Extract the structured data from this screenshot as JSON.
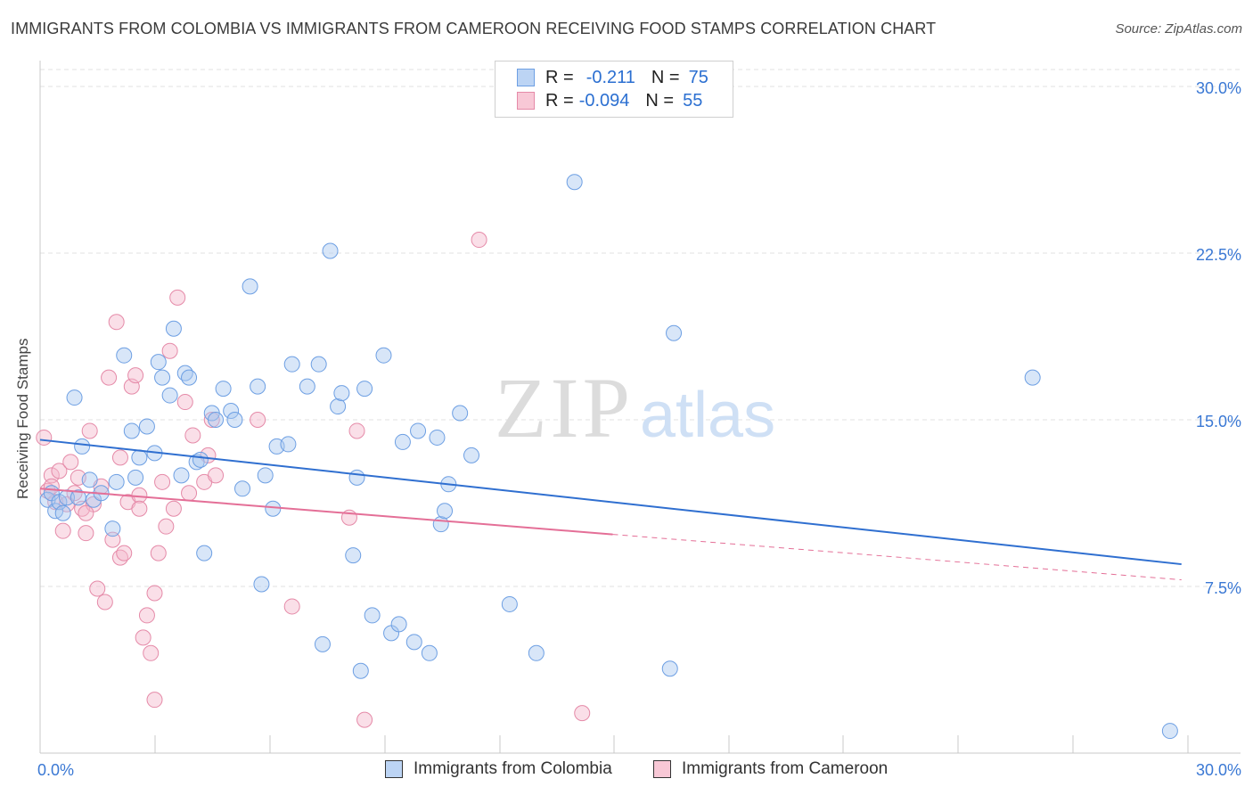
{
  "title": "IMMIGRANTS FROM COLOMBIA VS IMMIGRANTS FROM CAMEROON RECEIVING FOOD STAMPS CORRELATION CHART",
  "source": "Source: ZipAtlas.com",
  "watermark": {
    "zip": "ZIP",
    "atlas": "atlas"
  },
  "legend": {
    "r_label": "R =",
    "n_label": "N =",
    "series": [
      {
        "r": "-0.211",
        "n": "75"
      },
      {
        "r": "-0.094",
        "n": "55"
      }
    ]
  },
  "colors": {
    "blue_fill": "#a9c7f0",
    "blue_stroke": "#6d9fe3",
    "blue_line": "#2f6fd0",
    "pink_fill": "#f5b8cb",
    "pink_stroke": "#e58aa8",
    "pink_line": "#e46f97",
    "axis_label": "#3a78d4",
    "grid": "#e2e2e2"
  },
  "chart_data": {
    "type": "scatter",
    "title": "IMMIGRANTS FROM COLOMBIA VS IMMIGRANTS FROM CAMEROON RECEIVING FOOD STAMPS CORRELATION CHART",
    "xlabel": "",
    "ylabel": "Receiving Food Stamps",
    "xlim": [
      0,
      30
    ],
    "ylim": [
      0,
      30
    ],
    "x_tick_labels": {
      "left": "0.0%",
      "right": "30.0%"
    },
    "y_ticks": [
      {
        "value": 7.5,
        "label": "7.5%"
      },
      {
        "value": 15.0,
        "label": "15.0%"
      },
      {
        "value": 22.5,
        "label": "22.5%"
      },
      {
        "value": 30.0,
        "label": "30.0%"
      }
    ],
    "series": [
      {
        "name": "Immigrants from Colombia",
        "color": "blue",
        "r": -0.211,
        "n": 75,
        "trend": {
          "x0": 0.0,
          "y0": 14.1,
          "x1": 29.9,
          "y1": 8.5,
          "solid_until": 29.9
        },
        "points": [
          [
            0.2,
            11.4
          ],
          [
            0.3,
            11.7
          ],
          [
            0.4,
            10.9
          ],
          [
            0.5,
            11.3
          ],
          [
            0.6,
            10.8
          ],
          [
            0.7,
            11.5
          ],
          [
            0.9,
            16.0
          ],
          [
            1.0,
            11.5
          ],
          [
            1.1,
            13.8
          ],
          [
            1.3,
            12.3
          ],
          [
            1.4,
            11.4
          ],
          [
            1.6,
            11.7
          ],
          [
            1.9,
            10.1
          ],
          [
            2.0,
            12.2
          ],
          [
            2.2,
            17.9
          ],
          [
            2.4,
            14.5
          ],
          [
            2.5,
            12.4
          ],
          [
            2.6,
            13.3
          ],
          [
            2.8,
            14.7
          ],
          [
            3.0,
            13.5
          ],
          [
            3.1,
            17.6
          ],
          [
            3.2,
            16.9
          ],
          [
            3.4,
            16.1
          ],
          [
            3.5,
            19.1
          ],
          [
            3.7,
            12.5
          ],
          [
            3.8,
            17.1
          ],
          [
            3.9,
            16.9
          ],
          [
            4.1,
            13.1
          ],
          [
            4.2,
            13.2
          ],
          [
            4.3,
            9.0
          ],
          [
            4.5,
            15.3
          ],
          [
            4.6,
            15.0
          ],
          [
            4.8,
            16.4
          ],
          [
            5.0,
            15.4
          ],
          [
            5.1,
            15.0
          ],
          [
            5.3,
            11.9
          ],
          [
            5.5,
            21.0
          ],
          [
            5.7,
            16.5
          ],
          [
            5.8,
            7.6
          ],
          [
            5.9,
            12.5
          ],
          [
            6.1,
            11.0
          ],
          [
            6.2,
            13.8
          ],
          [
            6.5,
            13.9
          ],
          [
            6.6,
            17.5
          ],
          [
            7.0,
            16.5
          ],
          [
            7.3,
            17.5
          ],
          [
            7.4,
            4.9
          ],
          [
            7.6,
            22.6
          ],
          [
            7.8,
            15.6
          ],
          [
            7.9,
            16.2
          ],
          [
            8.2,
            8.9
          ],
          [
            8.3,
            12.4
          ],
          [
            8.4,
            3.7
          ],
          [
            8.5,
            16.4
          ],
          [
            8.7,
            6.2
          ],
          [
            9.0,
            17.9
          ],
          [
            9.2,
            5.4
          ],
          [
            9.4,
            5.8
          ],
          [
            9.5,
            14.0
          ],
          [
            9.8,
            5.0
          ],
          [
            9.9,
            14.5
          ],
          [
            10.2,
            4.5
          ],
          [
            10.4,
            14.2
          ],
          [
            10.5,
            10.3
          ],
          [
            10.6,
            10.9
          ],
          [
            10.7,
            12.1
          ],
          [
            11.0,
            15.3
          ],
          [
            11.3,
            13.4
          ],
          [
            12.3,
            6.7
          ],
          [
            13.0,
            4.5
          ],
          [
            14.0,
            25.7
          ],
          [
            16.5,
            3.8
          ],
          [
            16.6,
            18.9
          ],
          [
            26.0,
            16.9
          ],
          [
            29.6,
            1.0
          ]
        ]
      },
      {
        "name": "Immigrants from Cameroon",
        "color": "pink",
        "r": -0.094,
        "n": 55,
        "trend": {
          "x0": 0.0,
          "y0": 11.9,
          "x1": 29.9,
          "y1": 7.8,
          "solid_until": 15.0
        },
        "points": [
          [
            0.1,
            14.2
          ],
          [
            0.2,
            11.8
          ],
          [
            0.3,
            12.5
          ],
          [
            0.4,
            11.3
          ],
          [
            0.5,
            12.7
          ],
          [
            0.6,
            10.0
          ],
          [
            0.7,
            11.2
          ],
          [
            0.8,
            13.1
          ],
          [
            0.9,
            11.7
          ],
          [
            1.0,
            12.4
          ],
          [
            1.1,
            11.0
          ],
          [
            1.2,
            9.9
          ],
          [
            1.3,
            14.5
          ],
          [
            1.4,
            11.2
          ],
          [
            1.5,
            7.4
          ],
          [
            1.6,
            12.0
          ],
          [
            1.7,
            6.8
          ],
          [
            1.8,
            16.9
          ],
          [
            1.9,
            9.6
          ],
          [
            2.0,
            19.4
          ],
          [
            2.1,
            8.8
          ],
          [
            2.2,
            9.0
          ],
          [
            2.3,
            11.3
          ],
          [
            2.4,
            16.5
          ],
          [
            2.5,
            17.0
          ],
          [
            2.6,
            11.6
          ],
          [
            2.7,
            5.2
          ],
          [
            2.8,
            6.2
          ],
          [
            2.9,
            4.5
          ],
          [
            3.0,
            7.2
          ],
          [
            3.1,
            9.0
          ],
          [
            3.2,
            12.2
          ],
          [
            3.3,
            10.2
          ],
          [
            3.4,
            18.1
          ],
          [
            3.5,
            11.0
          ],
          [
            3.6,
            20.5
          ],
          [
            3.8,
            15.8
          ],
          [
            3.9,
            11.7
          ],
          [
            4.0,
            14.3
          ],
          [
            4.3,
            12.2
          ],
          [
            4.4,
            13.4
          ],
          [
            4.5,
            15.0
          ],
          [
            4.6,
            12.5
          ],
          [
            5.7,
            15.0
          ],
          [
            6.6,
            6.6
          ],
          [
            8.1,
            10.6
          ],
          [
            8.3,
            14.5
          ],
          [
            8.5,
            1.5
          ],
          [
            11.5,
            23.1
          ],
          [
            14.2,
            1.8
          ],
          [
            2.1,
            13.3
          ],
          [
            3.0,
            2.4
          ],
          [
            1.2,
            10.8
          ],
          [
            0.3,
            12.0
          ],
          [
            2.6,
            11.0
          ]
        ]
      }
    ]
  },
  "bottom_legend": [
    "Immigrants from Colombia",
    "Immigrants from Cameroon"
  ]
}
